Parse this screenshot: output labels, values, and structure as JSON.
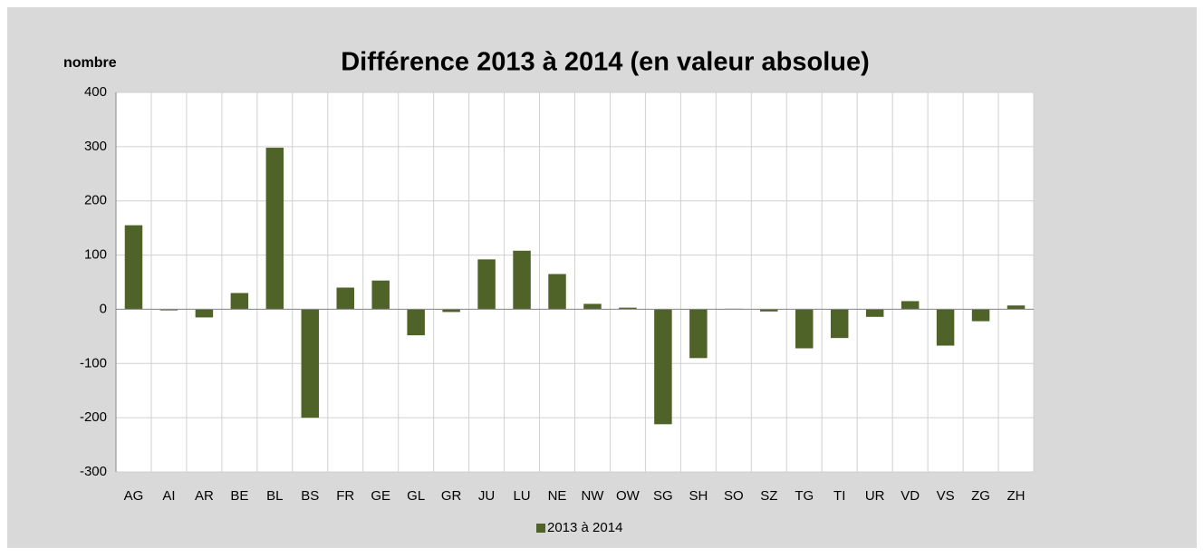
{
  "chart_data": {
    "type": "bar",
    "title": "Différence 2013 à 2014 (en valeur absolue)",
    "y_label": "nombre",
    "categories": [
      "AG",
      "AI",
      "AR",
      "BE",
      "BL",
      "BS",
      "FR",
      "GE",
      "GL",
      "GR",
      "JU",
      "LU",
      "NE",
      "NW",
      "OW",
      "SG",
      "SH",
      "SO",
      "SZ",
      "TG",
      "TI",
      "UR",
      "VD",
      "VS",
      "ZG",
      "ZH"
    ],
    "series": [
      {
        "name": "2013 à 2014",
        "color": "#4f6228",
        "values": [
          155,
          -2,
          -15,
          30,
          298,
          -200,
          40,
          53,
          -48,
          -5,
          92,
          108,
          65,
          10,
          3,
          -212,
          -90,
          1,
          -4,
          -72,
          -53,
          -14,
          15,
          -67,
          -22,
          7
        ]
      }
    ],
    "ylim": [
      -300,
      400
    ],
    "yticks": [
      -300,
      -200,
      -100,
      0,
      100,
      200,
      300,
      400
    ],
    "grid": true,
    "legend": "bottom"
  }
}
